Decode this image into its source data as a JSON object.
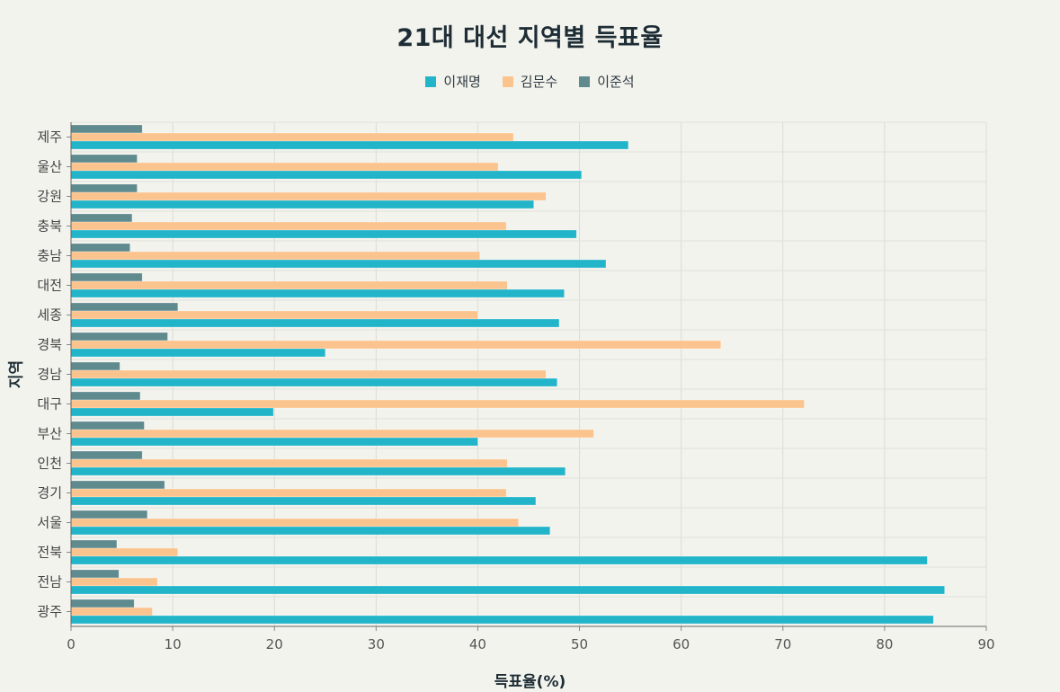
{
  "chart_data": {
    "type": "bar",
    "orientation": "horizontal",
    "title": "21대 대선 지역별 득표율",
    "xlabel": "득표율(%)",
    "ylabel": "지역",
    "xlim": [
      0,
      90
    ],
    "xticks": [
      0,
      10,
      20,
      30,
      40,
      50,
      60,
      70,
      80,
      90
    ],
    "grid": true,
    "legend_position": "top-center",
    "categories": [
      "제주",
      "울산",
      "강원",
      "충북",
      "충남",
      "대전",
      "세종",
      "경북",
      "경남",
      "대구",
      "부산",
      "인천",
      "경기",
      "서울",
      "전북",
      "전남",
      "광주"
    ],
    "series": [
      {
        "name": "이재명",
        "color": "#22b5c9",
        "values": [
          54.8,
          50.2,
          45.5,
          49.7,
          52.6,
          48.5,
          48.0,
          25.0,
          47.8,
          19.9,
          40.0,
          48.6,
          45.7,
          47.1,
          84.2,
          85.9,
          84.8
        ]
      },
      {
        "name": "김문수",
        "color": "#fbc48e",
        "values": [
          43.5,
          42.0,
          46.7,
          42.8,
          40.2,
          42.9,
          40.0,
          63.9,
          46.7,
          72.1,
          51.4,
          42.9,
          42.8,
          44.0,
          10.5,
          8.5,
          8.0
        ]
      },
      {
        "name": "이준석",
        "color": "#5f8a8e",
        "values": [
          7.0,
          6.5,
          6.5,
          6.0,
          5.8,
          7.0,
          10.5,
          9.5,
          4.8,
          6.8,
          7.2,
          7.0,
          9.2,
          7.5,
          4.5,
          4.7,
          6.2
        ]
      }
    ]
  }
}
